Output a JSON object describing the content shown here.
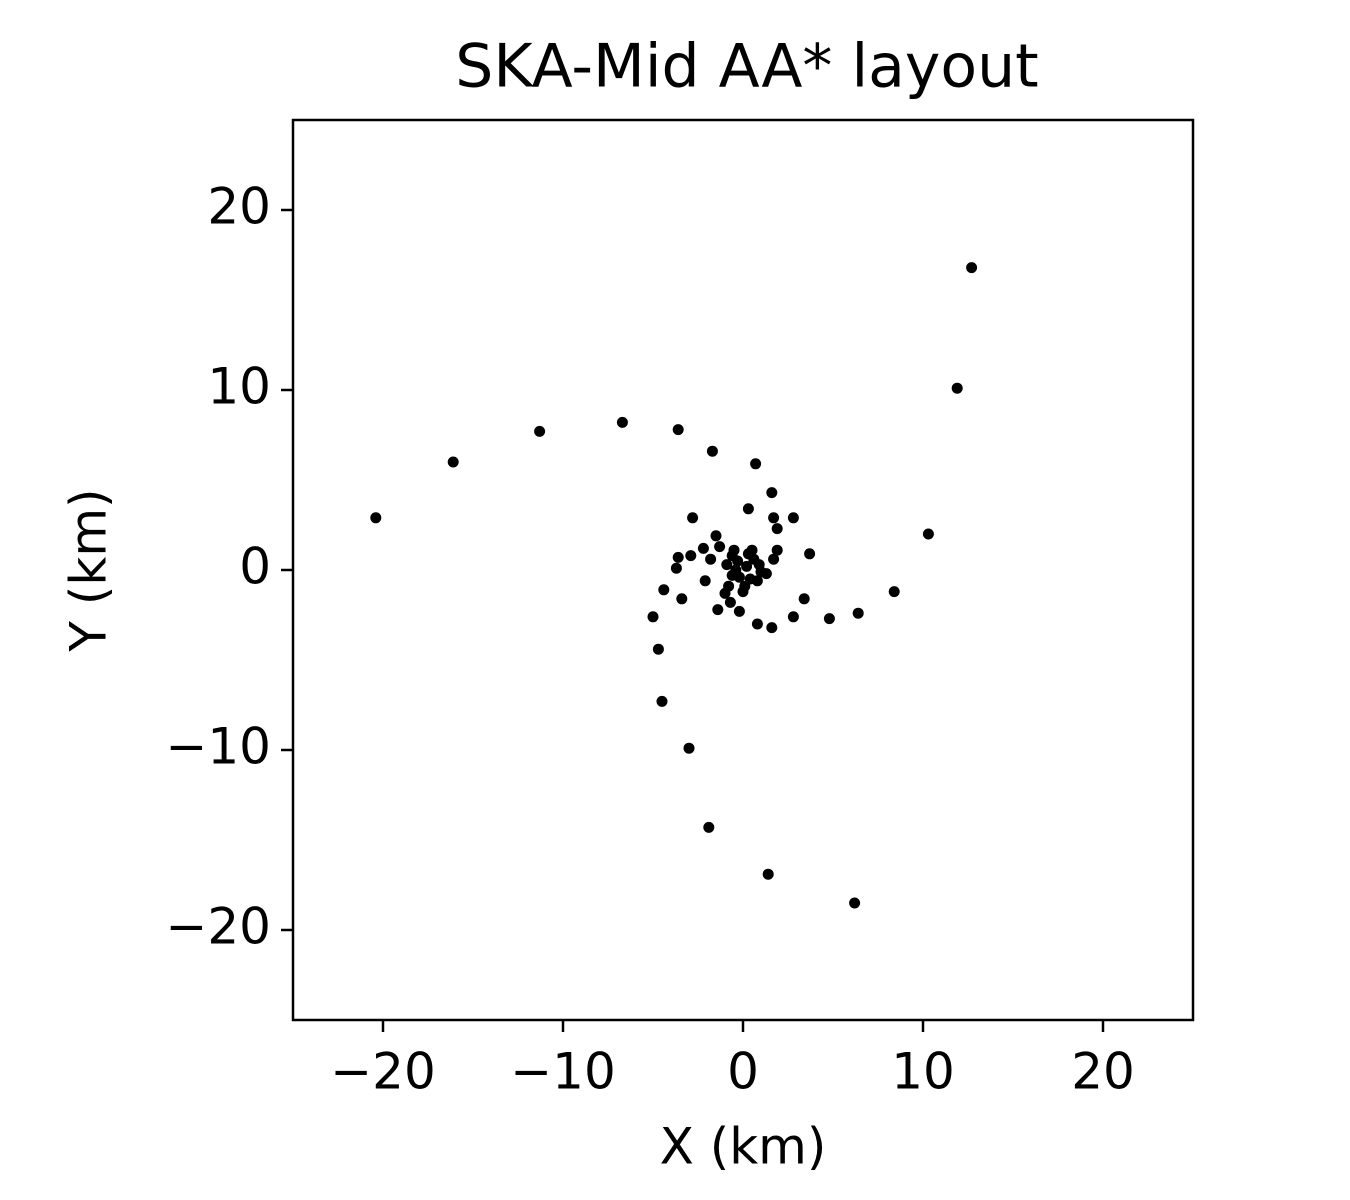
{
  "chart_data": {
    "type": "scatter",
    "title": "SKA-Mid AA* layout",
    "x_label": "X (km)",
    "y_label": "Y (km)",
    "color": "#000000",
    "x": [
      12.7,
      11.9,
      10.3,
      8.4,
      6.4,
      4.8,
      6.2,
      1.4,
      -1.9,
      -3.0,
      -4.5,
      -4.7,
      -5.0,
      -20.4,
      -16.1,
      -11.3,
      -6.7,
      -3.6,
      -1.7,
      0.7,
      1.6,
      0.3,
      1.7,
      2.8,
      1.9,
      1.9,
      3.7,
      -2.8,
      -1.5,
      -1.3,
      -2.2,
      -2.9,
      -3.6,
      -3.7,
      -1.8,
      -2.1,
      -4.4,
      -3.4,
      -1.4,
      -1.0,
      -0.7,
      -0.2,
      0.8,
      1.6,
      2.8,
      3.4,
      1.7,
      1.3,
      0.9,
      0.5,
      -0.5,
      -0.3,
      0.2,
      -0.6,
      0.4,
      0.1,
      -0.8,
      -0.4,
      0.6,
      -0.2,
      0.3,
      -0.9,
      1.0,
      0.0,
      -0.6,
      0.8
    ],
    "values": [
      16.8,
      10.1,
      2.0,
      -1.2,
      -2.4,
      -2.7,
      -18.5,
      -16.9,
      -14.3,
      -9.9,
      -7.3,
      -4.4,
      -2.6,
      2.9,
      6.0,
      7.7,
      8.2,
      7.8,
      6.6,
      5.9,
      4.3,
      3.4,
      2.9,
      2.9,
      2.3,
      1.1,
      0.9,
      2.9,
      1.9,
      1.3,
      1.2,
      0.8,
      0.7,
      0.1,
      0.6,
      -0.6,
      -1.1,
      -1.6,
      -2.2,
      -1.3,
      -1.8,
      -2.3,
      -3.0,
      -3.2,
      -2.6,
      -1.6,
      0.6,
      -0.2,
      0.3,
      1.1,
      1.1,
      0.5,
      0.2,
      -0.3,
      -0.5,
      -0.9,
      -0.9,
      0.0,
      0.6,
      -0.4,
      0.9,
      0.3,
      -0.1,
      -1.2,
      0.8,
      -0.6
    ],
    "xlim": [
      -25,
      25
    ],
    "ylim": [
      -25,
      25
    ],
    "xticks": [
      {
        "value": -20,
        "label": "−20"
      },
      {
        "value": -10,
        "label": "−10"
      },
      0,
      10,
      20
    ],
    "yticks": [
      {
        "value": -20,
        "label": "−20"
      },
      {
        "value": -10,
        "label": "−10"
      },
      0,
      10,
      20
    ]
  }
}
